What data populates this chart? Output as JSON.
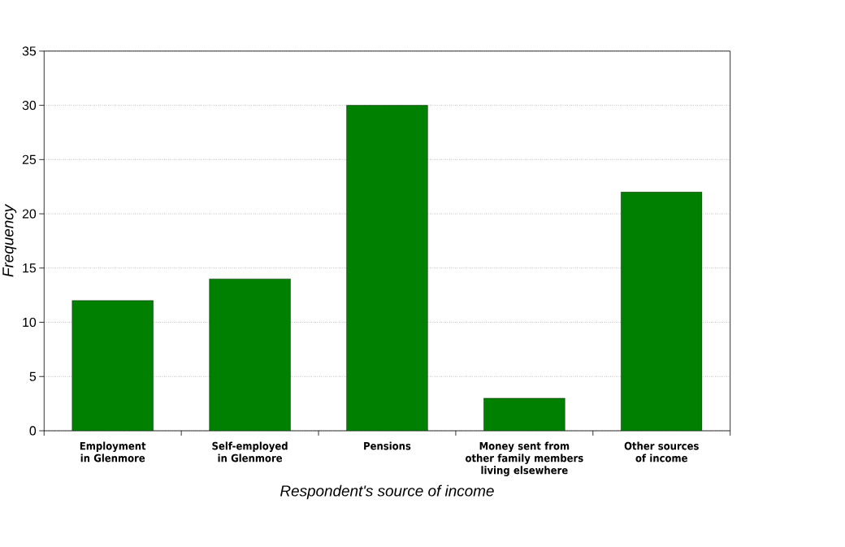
{
  "chart_data": {
    "type": "bar",
    "xlabel": "Respondent's source of income",
    "ylabel": "Frequency",
    "categories": [
      "Employment in Glenmore",
      "Self-employed in Glenmore",
      "Pensions",
      "Money sent from other family members living elsewhere",
      "Other sources of income"
    ],
    "values": [
      12,
      14,
      30,
      3,
      22
    ],
    "color": "#008000",
    "ylim": [
      0,
      35
    ],
    "yticks": [
      0,
      5,
      10,
      15,
      20,
      25,
      30,
      35
    ],
    "grid": "y"
  }
}
